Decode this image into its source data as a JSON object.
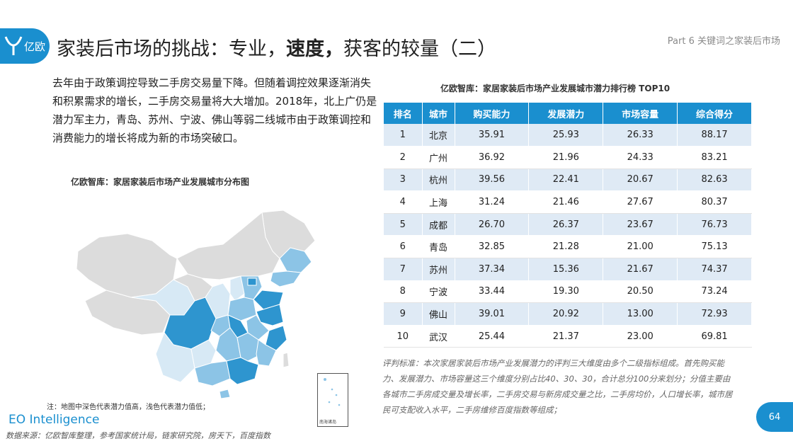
{
  "header": {
    "logo_text": "亿欧",
    "title_part1": "家装后市场的挑战：专业，",
    "title_bold1": "速度",
    "title_bold2": "，",
    "title_part2": "获客的较量（二）",
    "section_label": "Part 6 关键词之家装后市场"
  },
  "intro_text": "去年由于政策调控导致二手房交易量下降。但随着调控效果逐渐消失和积累需求的增长，二手房交易量将大大增加。2018年，北上广仍是潜力军主力，青岛、苏州、宁波、佛山等弱二线城市由于政策调控和消费能力的增长将成为新的市场突破口。",
  "map": {
    "title": "亿欧智库：家居家装后市场产业发展城市分布图",
    "inset_label": "南海诸岛",
    "note": "注：地图中深色代表潜力值高，浅色代表潜力值低；"
  },
  "table": {
    "title": "亿欧智库：家居家装后市场产业发展城市潜力排行榜 TOP10",
    "headers": [
      "排名",
      "城市",
      "购买能力",
      "发展潜力",
      "市场容量",
      "综合得分"
    ],
    "rows": [
      [
        "1",
        "北京",
        "35.91",
        "25.93",
        "26.33",
        "88.17"
      ],
      [
        "2",
        "广州",
        "36.92",
        "21.96",
        "24.33",
        "83.21"
      ],
      [
        "3",
        "杭州",
        "39.56",
        "22.41",
        "20.67",
        "82.63"
      ],
      [
        "4",
        "上海",
        "31.24",
        "21.46",
        "27.67",
        "80.37"
      ],
      [
        "5",
        "成都",
        "26.70",
        "26.37",
        "23.67",
        "76.73"
      ],
      [
        "6",
        "青岛",
        "32.85",
        "21.28",
        "21.00",
        "75.13"
      ],
      [
        "7",
        "苏州",
        "37.34",
        "15.36",
        "21.67",
        "74.37"
      ],
      [
        "8",
        "宁波",
        "33.44",
        "19.30",
        "20.50",
        "73.24"
      ],
      [
        "9",
        "佛山",
        "39.01",
        "20.92",
        "13.00",
        "72.93"
      ],
      [
        "10",
        "武汉",
        "25.44",
        "21.37",
        "23.00",
        "69.81"
      ]
    ]
  },
  "criteria_text": "评判标准：本次家居家装后市场产业发展潜力的评判三大维度由多个二级指标组成。首先购买能力、发展潜力、市场容量这三个维度分别占比40、30、30，合计总分100分来划分；分值主要由各城市二手房成交量及增长率，二手房交易与新房成交量之比，二手房均价，人口增长率，城市居民可支配收入水平，二手房维修百度指数等组成；",
  "footer": {
    "brand": "EO Intelligence",
    "source": "数据来源：亿欧智库整理，参考国家统计局，链家研究院，房天下，百度指数",
    "page_number": "64"
  },
  "colors": {
    "accent": "#1a8fcf",
    "row_stripe": "#dfeaf5",
    "map_dark": "#2e95cf",
    "map_mid": "#8cc4e6",
    "map_light": "#d7e9f5",
    "map_gray": "#dcdcdc"
  }
}
